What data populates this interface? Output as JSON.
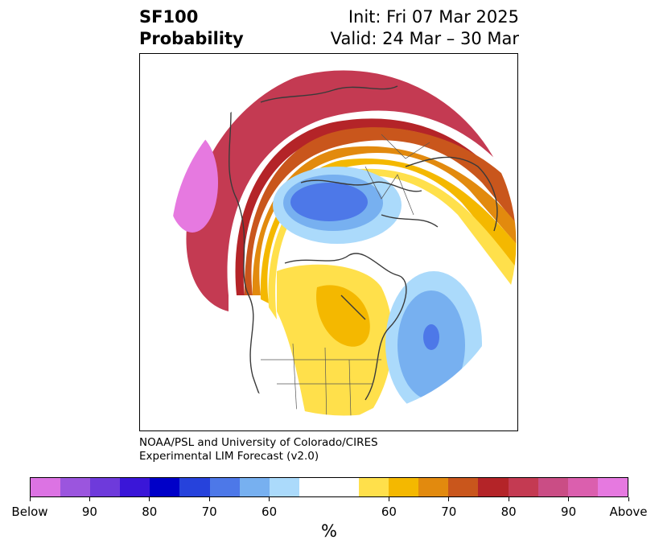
{
  "title": {
    "left_line1": "SF100",
    "left_line2": "Probability",
    "right_line1": "Init: Fri 07 Mar 2025",
    "right_line2": "Valid: 24 Mar – 30 Mar"
  },
  "credit": {
    "line1": "NOAA/PSL and University of Colorado/CIRES",
    "line2": "Experimental LIM Forecast (v2.0)"
  },
  "colorbar": {
    "colors": [
      "#dc73e3",
      "#9b55de",
      "#6e3adb",
      "#3a16d8",
      "#0000c8",
      "#2642dc",
      "#4d78e8",
      "#77b0f0",
      "#abdafb",
      "#ffffff",
      "#ffffff",
      "#ffe04b",
      "#f4b800",
      "#e28a0e",
      "#c9561c",
      "#b42428",
      "#c43a52",
      "#ca4d85",
      "#db5fae",
      "#e679e0"
    ],
    "labels": [
      "Below",
      "90",
      "80",
      "70",
      "60",
      "60",
      "70",
      "80",
      "90",
      "Above"
    ],
    "unit": "%"
  },
  "map": {
    "legend_colors": {
      "above_strong": "#e679e0",
      "above_high": "#db5fae",
      "above_mid": "#c43a52",
      "above_red": "#b42428",
      "above_orange": "#c9561c",
      "above_amber": "#e28a0e",
      "above_gold": "#f4b800",
      "above_yellow": "#ffe04b",
      "below_light": "#abdafb",
      "below_sky": "#77b0f0",
      "below_blue": "#4d78e8"
    }
  }
}
